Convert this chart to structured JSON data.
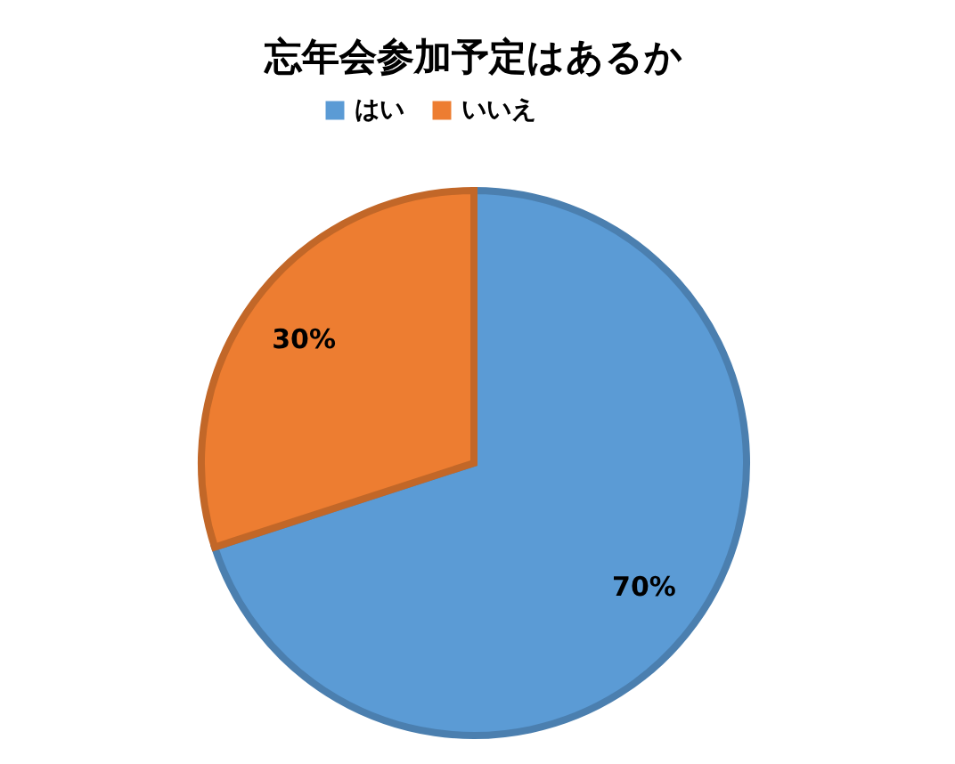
{
  "chart_data": {
    "type": "pie",
    "title": "忘年会参加予定はあるか",
    "categories": [
      "はい",
      "いいえ"
    ],
    "values": [
      70,
      30
    ],
    "colors": [
      "#5b9bd5",
      "#ed7d31"
    ],
    "value_labels": [
      "70%",
      "30%"
    ],
    "legend": "top"
  }
}
